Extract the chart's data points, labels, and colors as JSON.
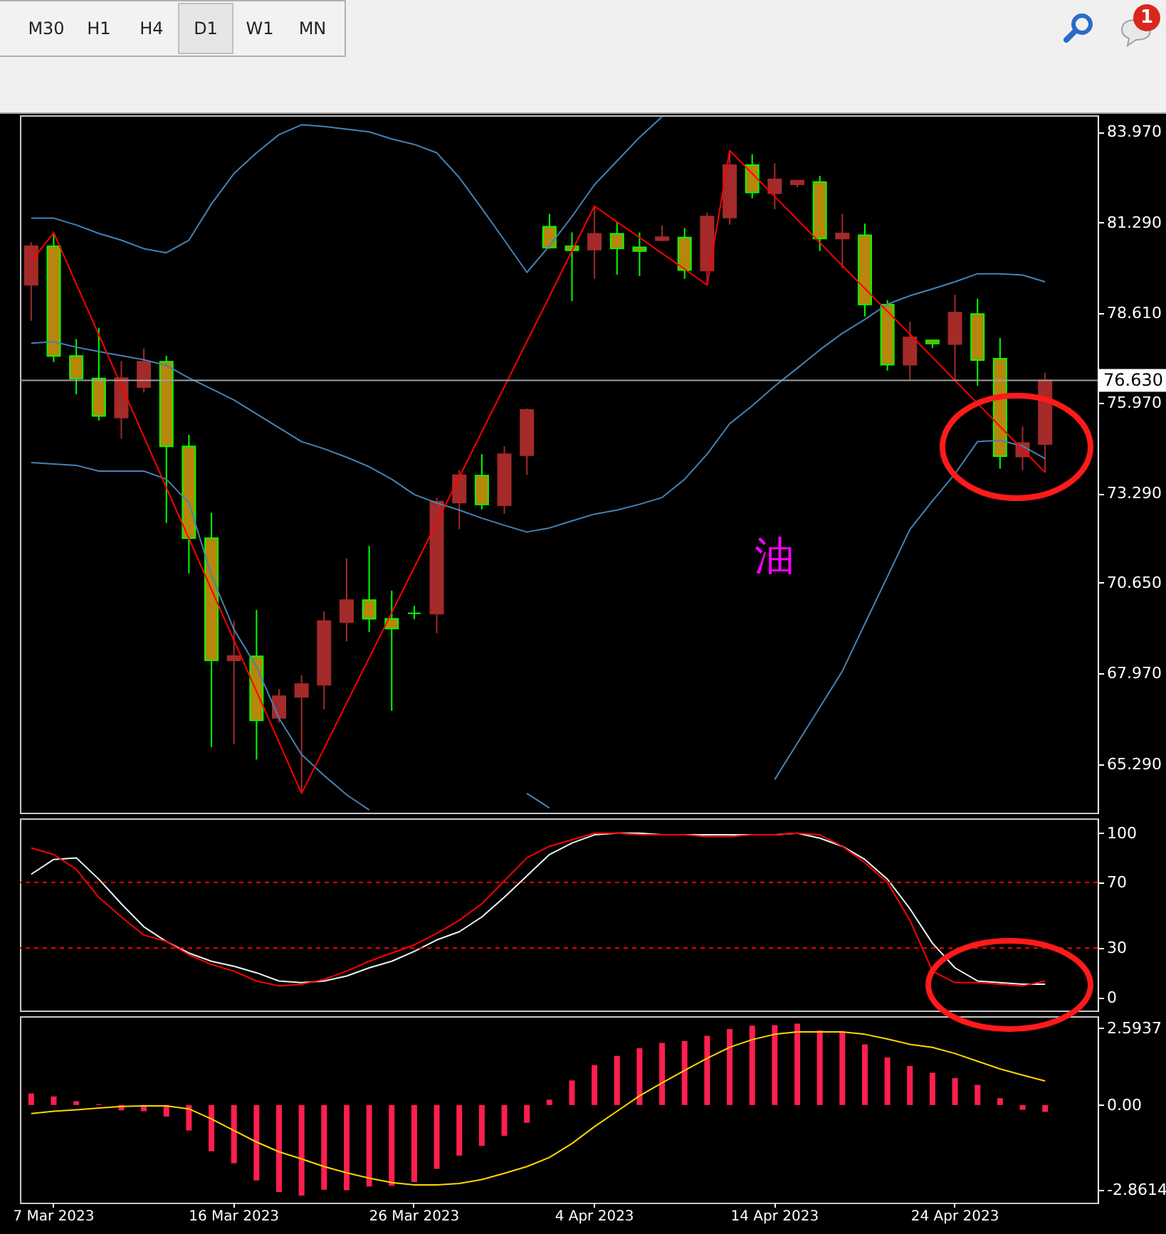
{
  "chart_data": [
    {
      "type": "candlestick",
      "tick_labels": "y",
      "ohlc": [
        [
          79.45,
          80.71,
          78.39,
          80.59
        ],
        [
          80.59,
          80.99,
          77.17,
          77.35
        ],
        [
          77.35,
          77.85,
          76.22,
          76.68
        ],
        [
          76.69,
          78.18,
          75.44,
          75.58
        ],
        [
          75.53,
          77.2,
          74.91,
          76.7
        ],
        [
          76.43,
          77.57,
          76.27,
          77.18
        ],
        [
          77.18,
          77.36,
          72.42,
          74.68
        ],
        [
          74.68,
          75.02,
          70.93,
          71.97
        ],
        [
          71.97,
          72.72,
          65.8,
          68.36
        ],
        [
          68.36,
          69.53,
          65.88,
          68.49
        ],
        [
          68.48,
          69.85,
          65.43,
          66.59
        ],
        [
          66.66,
          67.51,
          66.52,
          67.3
        ],
        [
          67.28,
          67.92,
          64.43,
          67.66
        ],
        [
          67.64,
          69.81,
          66.91,
          69.52
        ],
        [
          69.49,
          71.37,
          68.92,
          70.14
        ],
        [
          70.14,
          71.74,
          69.2,
          69.59
        ],
        [
          69.59,
          70.42,
          66.87,
          69.3
        ],
        [
          69.75,
          69.97,
          69.57,
          69.75
        ],
        [
          69.74,
          73.16,
          69.16,
          73.05
        ],
        [
          73.02,
          73.98,
          72.24,
          73.83
        ],
        [
          73.82,
          74.45,
          72.82,
          72.96
        ],
        [
          72.94,
          74.68,
          72.69,
          74.45
        ],
        [
          74.42,
          75.8,
          73.84,
          75.76
        ],
        [
          81.17,
          81.55,
          80.52,
          80.55
        ],
        [
          80.59,
          81.0,
          78.97,
          80.47
        ],
        [
          80.49,
          81.78,
          79.63,
          80.96
        ],
        [
          80.96,
          81.3,
          79.75,
          80.53
        ],
        [
          80.56,
          81.0,
          79.71,
          80.45
        ],
        [
          80.77,
          81.21,
          80.74,
          80.86
        ],
        [
          80.85,
          81.13,
          79.63,
          79.89
        ],
        [
          79.87,
          81.58,
          79.45,
          81.47
        ],
        [
          81.44,
          83.42,
          81.23,
          82.99
        ],
        [
          82.99,
          83.31,
          82.01,
          82.18
        ],
        [
          82.16,
          83.04,
          81.68,
          82.57
        ],
        [
          82.42,
          82.55,
          82.33,
          82.53
        ],
        [
          82.49,
          82.67,
          80.45,
          80.82
        ],
        [
          80.82,
          81.55,
          79.94,
          80.97
        ],
        [
          80.92,
          81.26,
          78.52,
          78.87
        ],
        [
          78.87,
          79.0,
          76.92,
          77.09
        ],
        [
          77.09,
          78.36,
          76.65,
          77.9
        ],
        [
          77.81,
          77.82,
          77.58,
          77.72
        ],
        [
          77.7,
          79.16,
          76.65,
          78.63
        ],
        [
          78.59,
          79.04,
          76.47,
          77.23
        ],
        [
          77.27,
          77.88,
          74.02,
          74.39
        ],
        [
          74.38,
          75.27,
          73.97,
          74.78
        ],
        [
          74.75,
          76.86,
          73.91,
          76.63
        ]
      ],
      "colors": [
        "#a52a2a",
        "#b8860b",
        "#b8860b",
        "#b8860b",
        "#a52a2a",
        "#a52a2a",
        "#b8860b",
        "#b8860b",
        "#b8860b",
        "#a52a2a",
        "#b8860b",
        "#a52a2a",
        "#a52a2a",
        "#a52a2a",
        "#a52a2a",
        "#b8860b",
        "#b8860b",
        "#00ff00",
        "#a52a2a",
        "#a52a2a",
        "#b8860b",
        "#a52a2a",
        "#a52a2a",
        "#b8860b",
        "#b8860b",
        "#a52a2a",
        "#b8860b",
        "#b8860b",
        "#a52a2a",
        "#b8860b",
        "#a52a2a",
        "#a52a2a",
        "#b8860b",
        "#a52a2a",
        "#a52a2a",
        "#b8860b",
        "#a52a2a",
        "#b8860b",
        "#b8860b",
        "#a52a2a",
        "#b8860b",
        "#a52a2a",
        "#b8860b",
        "#b8860b",
        "#a52a2a",
        "#a52a2a"
      ],
      "color": "#00ff00",
      "series": [
        {
          "type": "line",
          "color": "#4682b4",
          "values": [
            81.42,
            81.42,
            81.22,
            80.97,
            80.77,
            80.52,
            80.4,
            80.77,
            81.84,
            82.74,
            83.35,
            83.89,
            84.18,
            84.13,
            84.05,
            83.97,
            83.76,
            83.6,
            83.35,
            82.62,
            81.71,
            80.77,
            79.82,
            80.6,
            81.47,
            82.41,
            83.11,
            83.81,
            84.42,
            null,
            null,
            null,
            null,
            null,
            null,
            null,
            null,
            null,
            null,
            null,
            null,
            null,
            null,
            null,
            null,
            null
          ]
        },
        {
          "type": "line",
          "color": "#4682b4",
          "values": [
            77.73,
            77.77,
            77.61,
            77.48,
            77.36,
            77.24,
            77.07,
            76.7,
            76.38,
            76.05,
            75.64,
            75.23,
            74.82,
            74.61,
            74.36,
            74.08,
            73.71,
            73.26,
            73.01,
            72.8,
            72.56,
            72.35,
            72.15,
            72.27,
            72.48,
            72.68,
            72.8,
            72.97,
            73.17,
            73.71,
            74.45,
            75.35,
            75.88,
            76.46,
            76.99,
            77.53,
            78.02,
            78.43,
            78.88,
            79.13,
            79.33,
            79.54,
            79.78,
            79.78,
            79.74,
            79.54
          ]
        },
        {
          "type": "line",
          "color": "#4682b4",
          "values": [
            74.2,
            74.16,
            74.12,
            73.95,
            73.95,
            73.95,
            73.71,
            73.01,
            70.87,
            69.27,
            68.17,
            66.65,
            65.58,
            64.96,
            64.39,
            63.94,
            null,
            null,
            null,
            null,
            null,
            null,
            64.43,
            64.0,
            null,
            null,
            null,
            null,
            null,
            null,
            null,
            null,
            null,
            64.84,
            65.91,
            66.97,
            68.04,
            69.44,
            70.83,
            72.23,
            73.07,
            73.87,
            74.82,
            74.86,
            74.69,
            74.32
          ]
        },
        {
          "type": "line",
          "color": "#ff0000",
          "values": [
            80.15,
            80.99,
            79.48,
            77.98,
            76.47,
            74.97,
            73.46,
            71.96,
            70.45,
            68.95,
            67.44,
            65.94,
            64.43,
            65.76,
            67.1,
            68.43,
            69.77,
            71.1,
            72.44,
            73.77,
            75.11,
            76.44,
            77.78,
            79.11,
            80.45,
            81.78,
            81.31,
            80.85,
            80.38,
            79.92,
            79.45,
            83.42,
            82.74,
            82.06,
            81.38,
            80.7,
            80.02,
            79.34,
            78.67,
            77.99,
            77.31,
            76.63,
            75.95,
            75.27,
            74.59,
            73.91
          ]
        }
      ],
      "ylim": [
        63.86,
        84.46
      ],
      "yticks": [
        {
          "value": 83.97,
          "label": "83.970"
        },
        {
          "value": 81.29,
          "label": "81.290"
        },
        {
          "value": 78.61,
          "label": "78.610"
        },
        {
          "value": 75.97,
          "label": "75.970"
        },
        {
          "value": 73.29,
          "label": "73.290"
        },
        {
          "value": 70.65,
          "label": "70.650"
        },
        {
          "value": 67.97,
          "label": "67.970"
        },
        {
          "value": 65.29,
          "label": "65.290"
        }
      ],
      "ref_lines": [
        {
          "axis": "y",
          "value": 76.63,
          "label": "76.630",
          "color": "#a0a0a0",
          "line_style": "solid"
        }
      ],
      "annotations": [
        "M30",
        "H1",
        "H4",
        "D1",
        "W1",
        "MN",
        "1",
        "油"
      ]
    },
    {
      "type": "line",
      "tick_labels": "y",
      "series": [
        {
          "color": "#e8f4f4",
          "values": [
            75,
            84,
            85,
            72,
            57,
            43,
            34,
            27,
            22,
            19,
            15,
            10,
            9,
            10,
            13,
            18,
            22,
            28,
            35,
            40,
            49,
            61,
            74,
            87,
            94,
            99,
            100,
            100,
            99,
            99,
            99,
            99,
            99,
            99,
            100,
            97,
            92,
            84,
            72,
            54,
            33,
            18,
            10,
            9,
            8,
            8
          ]
        },
        {
          "color": "#ff0000",
          "values": [
            91,
            87,
            78,
            61,
            49,
            38,
            34,
            26,
            20,
            16,
            10,
            7,
            8,
            11,
            16,
            22,
            27,
            32,
            39,
            47,
            57,
            71,
            85,
            92,
            96,
            100,
            100,
            99,
            99,
            99,
            98,
            98,
            99,
            99,
            100,
            99,
            92,
            82,
            70,
            47,
            16,
            9,
            9,
            8,
            7,
            10
          ]
        }
      ],
      "ylim": [
        -8,
        109
      ],
      "yticks": [
        100,
        70,
        30,
        0
      ],
      "ref_lines": [
        {
          "axis": "y",
          "value": 70,
          "color": "#ff0000",
          "line_style": "dashed"
        },
        {
          "axis": "y",
          "value": 30,
          "color": "#ff0000",
          "line_style": "dashed"
        }
      ]
    },
    {
      "type": "bar",
      "categories": [
        null,
        "7 Mar 2023",
        null,
        null,
        null,
        null,
        null,
        null,
        null,
        "16 Mar 2023",
        null,
        null,
        null,
        null,
        null,
        null,
        null,
        "26 Mar 2023",
        null,
        null,
        null,
        null,
        null,
        null,
        null,
        "4 Apr 2023",
        null,
        null,
        null,
        null,
        null,
        null,
        null,
        "14 Apr 2023",
        null,
        null,
        null,
        null,
        null,
        null,
        null,
        "24 Apr 2023",
        null,
        null,
        null,
        null
      ],
      "series": [
        {
          "type": "bar",
          "color": "#ff1f4f",
          "values": [
            0.39,
            0.29,
            0.13,
            0.03,
            -0.18,
            -0.21,
            -0.39,
            -0.86,
            -1.56,
            -1.97,
            -2.55,
            -2.94,
            -3.06,
            -2.86,
            -2.88,
            -2.75,
            -2.73,
            -2.6,
            -2.16,
            -1.71,
            -1.38,
            -1.04,
            -0.6,
            0.18,
            0.83,
            1.35,
            1.66,
            1.92,
            2.1,
            2.16,
            2.34,
            2.57,
            2.68,
            2.7,
            2.75,
            2.52,
            2.47,
            2.05,
            1.61,
            1.32,
            1.09,
            0.91,
            0.68,
            0.23,
            -0.16,
            -0.23
          ]
        },
        {
          "type": "line",
          "color": "#ffd700",
          "values": [
            -0.29,
            -0.21,
            -0.16,
            -0.1,
            -0.05,
            -0.03,
            -0.03,
            -0.13,
            -0.47,
            -0.86,
            -1.25,
            -1.58,
            -1.82,
            -2.08,
            -2.29,
            -2.47,
            -2.62,
            -2.7,
            -2.7,
            -2.65,
            -2.52,
            -2.31,
            -2.08,
            -1.77,
            -1.3,
            -0.73,
            -0.21,
            0.31,
            0.75,
            1.17,
            1.58,
            1.95,
            2.21,
            2.39,
            2.47,
            2.47,
            2.47,
            2.39,
            2.23,
            2.05,
            1.95,
            1.74,
            1.48,
            1.22,
            1.01,
            0.81
          ]
        }
      ],
      "ylim": [
        -3.3,
        3.0
      ],
      "yticks": [
        2.5937,
        {
          "value": 0,
          "label": "0.00"
        },
        -2.8614
      ]
    }
  ]
}
